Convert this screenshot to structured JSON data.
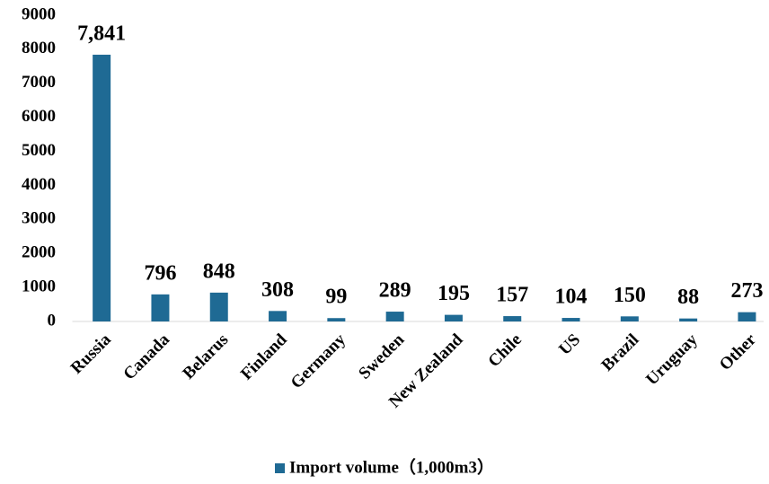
{
  "chart_data": {
    "type": "bar",
    "categories": [
      "Russia",
      "Canada",
      "Belarus",
      "Finland",
      "Germany",
      "Sweden",
      "New Zealand",
      "Chile",
      "US",
      "Brazil",
      "Uruguay",
      "Other"
    ],
    "series": [
      {
        "name": "Import volume（1,000m3）",
        "color": "#1f6a94",
        "values": [
          7841,
          796,
          848,
          308,
          99,
          289,
          195,
          157,
          104,
          150,
          88,
          273
        ],
        "value_labels": [
          "7,841",
          "796",
          "848",
          "308",
          "99",
          "289",
          "195",
          "157",
          "104",
          "150",
          "88",
          "273"
        ]
      }
    ],
    "ylim": [
      0,
      9000
    ],
    "yticks": [
      0,
      1000,
      2000,
      3000,
      4000,
      5000,
      6000,
      7000,
      8000,
      9000
    ],
    "grid": false,
    "legend": "bottom"
  }
}
